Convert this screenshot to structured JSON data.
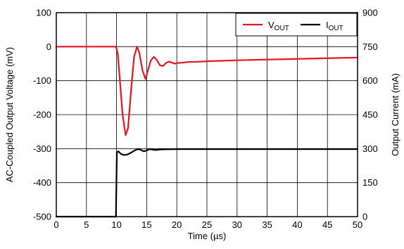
{
  "chart_data": {
    "type": "line",
    "xlabel": "Time (µs)",
    "ylabel_left": "AC-Coupled Output Voltage (mV)",
    "ylabel_right": "Output Current (mA)",
    "xlim": [
      0,
      50
    ],
    "ylim_left": [
      -500,
      100
    ],
    "ylim_right": [
      0,
      900
    ],
    "x_ticks": [
      "0",
      "5",
      "10",
      "15",
      "20",
      "25",
      "30",
      "35",
      "40",
      "45",
      "50"
    ],
    "y_left_ticks": [
      "100",
      "0",
      "-100",
      "-200",
      "-300",
      "-400",
      "-500"
    ],
    "y_right_ticks": [
      "900",
      "750",
      "600",
      "450",
      "300",
      "150",
      "0"
    ],
    "grid": true,
    "legend_position": "top-right",
    "series": [
      {
        "name": "VOUT",
        "legend_main": "V",
        "legend_sub": "OUT",
        "axis": "left",
        "color": "#e8141c",
        "x": [
          0,
          5,
          9.9,
          10.2,
          10.6,
          11.0,
          11.5,
          11.9,
          12.4,
          12.9,
          13.4,
          13.8,
          14.3,
          14.8,
          15.2,
          15.7,
          16.2,
          16.7,
          17.2,
          17.7,
          18.2,
          18.7,
          19.2,
          19.7,
          20.2,
          21,
          22,
          23,
          25,
          30,
          35,
          40,
          45,
          50
        ],
        "y": [
          0,
          0,
          0,
          -20,
          -110,
          -200,
          -260,
          -240,
          -130,
          -30,
          0,
          -20,
          -70,
          -95,
          -70,
          -40,
          -30,
          -40,
          -55,
          -57,
          -48,
          -44,
          -47,
          -50,
          -48,
          -47,
          -45,
          -45,
          -43,
          -40,
          -38,
          -36,
          -34,
          -32
        ]
      },
      {
        "name": "IOUT",
        "legend_main": "I",
        "legend_sub": "OUT",
        "axis": "right",
        "color": "#000000",
        "x": [
          0,
          9.9,
          10.05,
          10.3,
          10.7,
          11.2,
          11.8,
          12.4,
          13.0,
          13.5,
          14.0,
          14.5,
          15.0,
          15.5,
          16.0,
          16.5,
          17,
          18,
          20,
          25,
          30,
          35,
          40,
          45,
          50
        ],
        "y": [
          0,
          0,
          285,
          288,
          277,
          272,
          274,
          282,
          292,
          298,
          295,
          288,
          292,
          298,
          296,
          294,
          296,
          297,
          298,
          298,
          298,
          298,
          298,
          298,
          298
        ]
      }
    ]
  }
}
